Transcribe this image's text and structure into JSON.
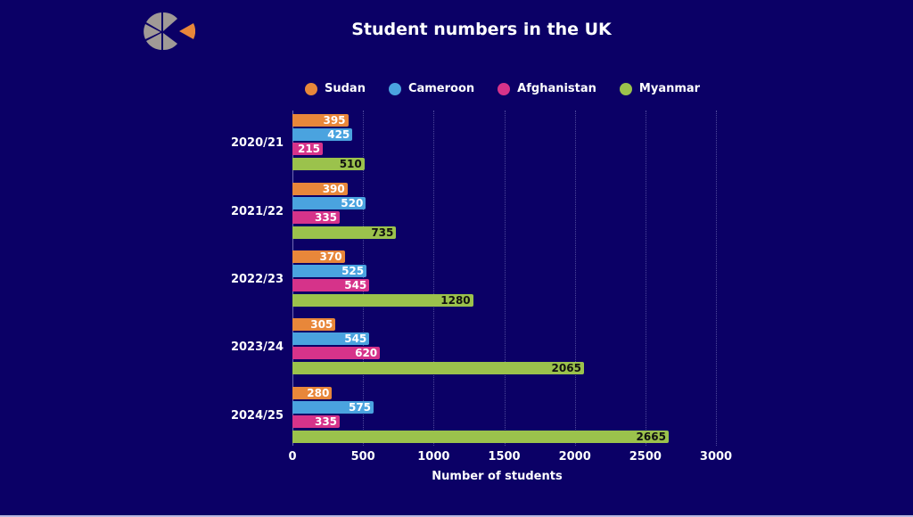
{
  "header": {
    "title": "Student numbers in the UK",
    "logo": "pie-logo-icon"
  },
  "colors": {
    "background": "#0b0066",
    "Sudan": "#e8873a",
    "Cameroon": "#4aa3df",
    "Afghanistan": "#d6338a",
    "Myanmar": "#9bc24c"
  },
  "chart_data": {
    "type": "bar",
    "orientation": "horizontal",
    "title": "Student numbers in the UK",
    "xlabel": "Number of students",
    "ylabel": "",
    "xlim": [
      0,
      3000
    ],
    "xticks": [
      0,
      500,
      1000,
      1500,
      2000,
      2500,
      3000
    ],
    "grid": true,
    "legend_position": "top",
    "categories": [
      "2020/21",
      "2021/22",
      "2022/23",
      "2023/24",
      "2024/25"
    ],
    "series": [
      {
        "name": "Sudan",
        "color": "#e8873a",
        "values": [
          395,
          390,
          370,
          305,
          280
        ]
      },
      {
        "name": "Cameroon",
        "color": "#4aa3df",
        "values": [
          425,
          520,
          525,
          545,
          575
        ]
      },
      {
        "name": "Afghanistan",
        "color": "#d6338a",
        "values": [
          215,
          335,
          545,
          620,
          335
        ]
      },
      {
        "name": "Myanmar",
        "color": "#9bc24c",
        "values": [
          510,
          735,
          1280,
          2065,
          2665
        ]
      }
    ]
  }
}
